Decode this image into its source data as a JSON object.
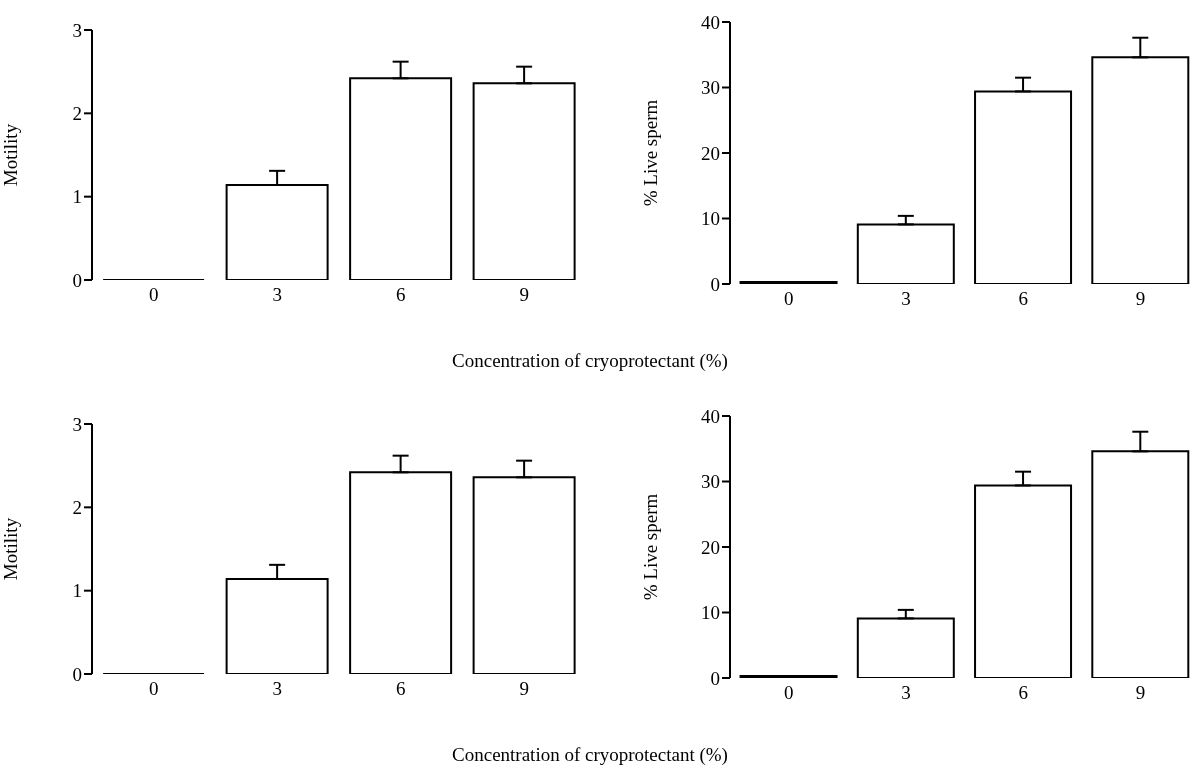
{
  "chart_data": [
    {
      "type": "bar",
      "ylabel": "Motility",
      "xlabel": "Concentration of cryoprotectant (%)",
      "categories": [
        "0",
        "3",
        "6",
        "9"
      ],
      "values": [
        0,
        1.14,
        2.42,
        2.36
      ],
      "errors": [
        null,
        [
          1.14,
          1.31
        ],
        [
          2.42,
          2.62
        ],
        [
          2.36,
          2.56
        ]
      ],
      "colors": [
        "#000000",
        "#ffffff",
        "#ffffff",
        "#ffffff"
      ],
      "ylim": [
        0,
        3
      ],
      "yticks": [
        0,
        1,
        2,
        3
      ],
      "grid": false,
      "legend": false
    },
    {
      "type": "bar",
      "ylabel": "% Live sperm",
      "categories": [
        "0",
        "3",
        "6",
        "9"
      ],
      "values": [
        0.3,
        9.1,
        29.4,
        34.6
      ],
      "errors": [
        null,
        [
          9.1,
          10.4
        ],
        [
          29.4,
          31.5
        ],
        [
          34.6,
          37.6
        ]
      ],
      "colors": [
        "#000000",
        "#ffffff",
        "#ffffff",
        "#ffffff"
      ],
      "ylim": [
        0,
        40
      ],
      "yticks": [
        0,
        10,
        20,
        30,
        40
      ],
      "grid": false,
      "legend": false
    },
    {
      "type": "bar",
      "ylabel": "Motility",
      "xlabel": "Concentration of cryoprotectant (%)",
      "categories": [
        "0",
        "3",
        "6",
        "9"
      ],
      "values": [
        0,
        1.14,
        2.42,
        2.36
      ],
      "errors": [
        null,
        [
          1.14,
          1.31
        ],
        [
          2.42,
          2.62
        ],
        [
          2.36,
          2.56
        ]
      ],
      "colors": [
        "#000000",
        "#ffffff",
        "#ffffff",
        "#ffffff"
      ],
      "ylim": [
        0,
        3
      ],
      "yticks": [
        0,
        1,
        2,
        3
      ],
      "grid": false,
      "legend": false
    },
    {
      "type": "bar",
      "ylabel": "% Live sperm",
      "categories": [
        "0",
        "3",
        "6",
        "9"
      ],
      "values": [
        0.3,
        9.1,
        29.4,
        34.6
      ],
      "errors": [
        null,
        [
          9.1,
          10.4
        ],
        [
          29.4,
          31.5
        ],
        [
          34.6,
          37.6
        ]
      ],
      "colors": [
        "#000000",
        "#ffffff",
        "#ffffff",
        "#ffffff"
      ],
      "ylim": [
        0,
        40
      ],
      "yticks": [
        0,
        10,
        20,
        30,
        40
      ],
      "grid": false,
      "legend": false
    }
  ]
}
